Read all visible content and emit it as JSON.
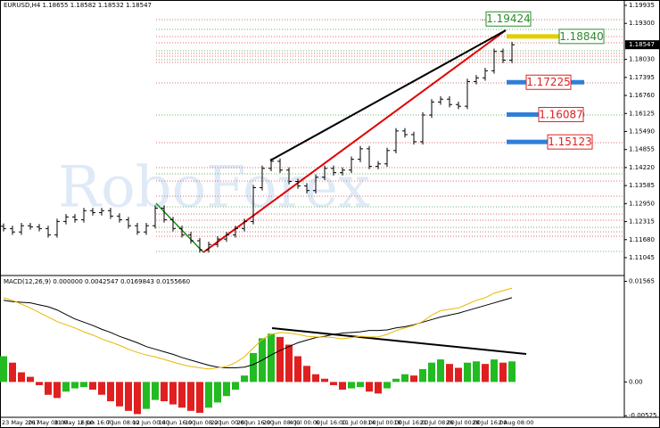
{
  "header_text": "EURUSD,H4  1.18655 1.18582 1.18532 1.18547",
  "watermark": "RoboForex",
  "chart_data": [
    {
      "type": "ohlc",
      "x_axis_labels": [
        "23 May 2017",
        "26 May 08:00",
        "31 May 16:00",
        "2 Jun 16:00",
        "7 Jun 08:00",
        "12 Jun 00:00",
        "14 Jun 16:00",
        "19 Jun 08:00",
        "22 Jun 00:00",
        "26 Jun 16:00",
        "29 Jun 08:00",
        "4 Jul 00:00",
        "6 Jul 16:00",
        "11 Jul 08:00",
        "14 Jul 00:00",
        "18 Jul 16:00",
        "21 Jul 08:00",
        "26 Jul 00:00",
        "28 Jul 16:00",
        "2 Aug 08:00"
      ],
      "open": [
        1.1215,
        1.1207,
        1.1195,
        1.1217,
        1.1213,
        1.1207,
        1.1185,
        1.1232,
        1.1248,
        1.1238,
        1.127,
        1.1263,
        1.127,
        1.1251,
        1.1238,
        1.1217,
        1.1195,
        1.1217,
        1.1279,
        1.1238,
        1.1207,
        1.1185,
        1.1164,
        1.1132,
        1.1151,
        1.117,
        1.1185,
        1.1207,
        1.1232,
        1.1351,
        1.1419,
        1.1444,
        1.1413,
        1.1373,
        1.1357,
        1.1341,
        1.1388,
        1.1419,
        1.1404,
        1.1413,
        1.1451,
        1.1488,
        1.1426,
        1.1435,
        1.1482,
        1.1551,
        1.1538,
        1.1513,
        1.1607,
        1.1653,
        1.1663,
        1.1644,
        1.1638,
        1.1725,
        1.1738,
        1.1763,
        1.1831,
        1.18
      ],
      "high": [
        1.1225,
        1.1217,
        1.1227,
        1.1227,
        1.1223,
        1.1217,
        1.1242,
        1.1258,
        1.1258,
        1.128,
        1.128,
        1.128,
        1.128,
        1.1261,
        1.1248,
        1.1227,
        1.1227,
        1.1289,
        1.1289,
        1.1248,
        1.1217,
        1.1195,
        1.1174,
        1.1161,
        1.118,
        1.1195,
        1.1217,
        1.1242,
        1.1361,
        1.1429,
        1.1454,
        1.1454,
        1.1423,
        1.1383,
        1.1367,
        1.1398,
        1.1429,
        1.1429,
        1.1423,
        1.1461,
        1.1498,
        1.1498,
        1.1445,
        1.1492,
        1.1561,
        1.1561,
        1.1548,
        1.1617,
        1.1663,
        1.1673,
        1.1673,
        1.1654,
        1.1735,
        1.1748,
        1.1773,
        1.1841,
        1.1841,
        1.1865
      ],
      "low": [
        1.1197,
        1.1185,
        1.1185,
        1.1203,
        1.1197,
        1.1175,
        1.1175,
        1.1222,
        1.1228,
        1.1228,
        1.1253,
        1.1253,
        1.1241,
        1.1228,
        1.1207,
        1.1185,
        1.1185,
        1.1207,
        1.1228,
        1.1197,
        1.1175,
        1.1154,
        1.1122,
        1.1122,
        1.1141,
        1.116,
        1.1175,
        1.1197,
        1.1222,
        1.1341,
        1.1409,
        1.1403,
        1.1363,
        1.1347,
        1.1331,
        1.1331,
        1.1378,
        1.1394,
        1.1394,
        1.1403,
        1.1441,
        1.1416,
        1.1416,
        1.1425,
        1.1472,
        1.1528,
        1.1503,
        1.1503,
        1.1597,
        1.1643,
        1.1634,
        1.1628,
        1.1628,
        1.1715,
        1.1728,
        1.1753,
        1.179,
        1.179
      ],
      "close": [
        1.1207,
        1.1195,
        1.1217,
        1.1213,
        1.1207,
        1.1185,
        1.1232,
        1.1248,
        1.1238,
        1.127,
        1.1263,
        1.127,
        1.1251,
        1.1238,
        1.1217,
        1.1195,
        1.1217,
        1.1279,
        1.1238,
        1.1207,
        1.1185,
        1.1164,
        1.1132,
        1.1151,
        1.117,
        1.1185,
        1.1207,
        1.1232,
        1.1351,
        1.1419,
        1.1444,
        1.1413,
        1.1373,
        1.1357,
        1.1341,
        1.1388,
        1.1419,
        1.1404,
        1.1413,
        1.1451,
        1.1488,
        1.1426,
        1.1435,
        1.1482,
        1.1551,
        1.1538,
        1.1513,
        1.1607,
        1.1653,
        1.1663,
        1.1644,
        1.1638,
        1.1725,
        1.1738,
        1.1763,
        1.1831,
        1.18,
        1.18547
      ],
      "color": "#000000",
      "ylim": [
        1.1051,
        1.2006
      ],
      "yticks": [
        1.19935,
        {
          "value": 1.193,
          "label": "1.19300"
        },
        {
          "value": 1.1803,
          "label": "1.18030"
        },
        1.17395,
        {
          "value": 1.1676,
          "label": "1.16760"
        },
        1.16125,
        {
          "value": 1.1549,
          "label": "1.15490"
        },
        1.14855,
        {
          "value": 1.1422,
          "label": "1.14220"
        },
        1.13585,
        {
          "value": 1.1295,
          "label": "1.12950"
        },
        1.12315,
        {
          "value": 1.1168,
          "label": "1.11680"
        },
        1.11045
      ],
      "current_price": 1.18547,
      "levels": [
        {
          "value": 1.19424,
          "color": "#2e8b2e"
        },
        {
          "value": 1.1884,
          "label": "1.18840",
          "color": "#2e8b2e"
        },
        {
          "value": 1.17225,
          "color": "#e02020"
        },
        {
          "value": 1.16087,
          "color": "#e02020"
        },
        {
          "value": 1.15123,
          "color": "#e02020"
        }
      ]
    },
    {
      "type": "macd",
      "title": "MACD(12,26,9) 0.000000 0.0042547 0.0169843 0.0155660",
      "histogram": [
        0.004,
        0.003,
        0.0015,
        0.0008,
        -0.0005,
        -0.002,
        -0.0025,
        -0.0015,
        -0.001,
        -0.0008,
        -0.0012,
        -0.002,
        -0.003,
        -0.0038,
        -0.0045,
        -0.005,
        -0.0042,
        -0.0028,
        -0.003,
        -0.0035,
        -0.004,
        -0.0045,
        -0.0048,
        -0.004,
        -0.0032,
        -0.0022,
        -0.0012,
        0.001,
        0.0045,
        0.0068,
        0.0075,
        0.007,
        0.0058,
        0.004,
        0.0025,
        0.0012,
        0.0005,
        -0.0005,
        -0.0012,
        -0.001,
        -0.0008,
        -0.0015,
        -0.0018,
        -0.001,
        0.0005,
        0.0012,
        0.001,
        0.002,
        0.003,
        0.0035,
        0.0028,
        0.0022,
        0.003,
        0.0032,
        0.0028,
        0.0035,
        0.003,
        0.0032
      ],
      "main": [
        0.0131,
        0.0127,
        0.0121,
        0.0115,
        0.0108,
        0.0101,
        0.0094,
        0.0089,
        0.0084,
        0.0078,
        0.0073,
        0.0067,
        0.0062,
        0.0057,
        0.0051,
        0.0046,
        0.0042,
        0.0039,
        0.0035,
        0.0031,
        0.0027,
        0.0024,
        0.0022,
        0.002,
        0.0022,
        0.0024,
        0.003,
        0.0039,
        0.0053,
        0.0066,
        0.0074,
        0.0077,
        0.0076,
        0.0074,
        0.0071,
        0.007,
        0.007,
        0.0069,
        0.0067,
        0.0069,
        0.0071,
        0.007,
        0.007,
        0.0074,
        0.008,
        0.0084,
        0.0088,
        0.0094,
        0.0104,
        0.0111,
        0.0113,
        0.0115,
        0.0121,
        0.0127,
        0.0131,
        0.0138,
        0.0142,
        0.0146
      ],
      "signal": [
        0.0127,
        0.0125,
        0.0124,
        0.0123,
        0.012,
        0.0117,
        0.0112,
        0.0105,
        0.0098,
        0.0093,
        0.0088,
        0.0082,
        0.0077,
        0.0071,
        0.0066,
        0.0061,
        0.0055,
        0.0051,
        0.0047,
        0.0043,
        0.0038,
        0.0034,
        0.003,
        0.0026,
        0.0023,
        0.0022,
        0.0022,
        0.0023,
        0.0027,
        0.0034,
        0.0042,
        0.0049,
        0.0055,
        0.0061,
        0.0065,
        0.0069,
        0.0071,
        0.0074,
        0.0076,
        0.0077,
        0.0078,
        0.008,
        0.008,
        0.0081,
        0.0084,
        0.0086,
        0.0089,
        0.0093,
        0.0097,
        0.0101,
        0.0104,
        0.0107,
        0.0111,
        0.0115,
        0.0119,
        0.0123,
        0.0127,
        0.0131
      ],
      "up_color": "#22bb22",
      "down_color": "#e02020",
      "main_color": "#e8b800",
      "signal_color": "#000000",
      "ylim": [
        -0.0055,
        0.016
      ],
      "yticks": [
        0.01565,
        {
          "value": 0,
          "label": "0.00"
        },
        -0.00525
      ]
    }
  ]
}
